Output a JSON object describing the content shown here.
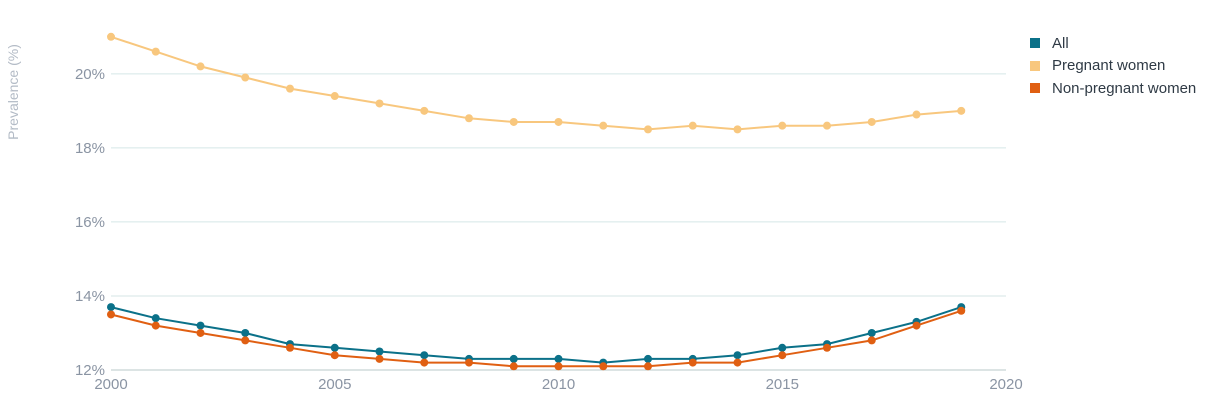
{
  "chart_data": {
    "type": "line",
    "title": "",
    "xlabel": "",
    "ylabel": "Prevalence (%)",
    "xlim": [
      2000,
      2020
    ],
    "ylim": [
      12,
      21.4
    ],
    "xticks": [
      2000,
      2005,
      2010,
      2015,
      2020
    ],
    "yticks": [
      12,
      14,
      16,
      18,
      20
    ],
    "ytick_labels": [
      "12%",
      "14%",
      "16%",
      "18%",
      "20%"
    ],
    "grid": true,
    "legend_position": "top-right",
    "x": [
      2000,
      2001,
      2002,
      2003,
      2004,
      2005,
      2006,
      2007,
      2008,
      2009,
      2010,
      2011,
      2012,
      2013,
      2014,
      2015,
      2016,
      2017,
      2018,
      2019
    ],
    "series": [
      {
        "name": "All",
        "color": "#0b7189",
        "values": [
          13.7,
          13.4,
          13.2,
          13.0,
          12.7,
          12.6,
          12.5,
          12.4,
          12.3,
          12.3,
          12.3,
          12.2,
          12.3,
          12.3,
          12.4,
          12.6,
          12.7,
          13.0,
          13.3,
          13.7
        ]
      },
      {
        "name": "Pregnant women",
        "color": "#f8c77e",
        "values": [
          21.0,
          20.6,
          20.2,
          19.9,
          19.6,
          19.4,
          19.2,
          19.0,
          18.8,
          18.7,
          18.7,
          18.6,
          18.5,
          18.6,
          18.5,
          18.6,
          18.6,
          18.7,
          18.9,
          19.0
        ]
      },
      {
        "name": "Non-pregnant women",
        "color": "#e05f12",
        "values": [
          13.5,
          13.2,
          13.0,
          12.8,
          12.6,
          12.4,
          12.3,
          12.2,
          12.2,
          12.1,
          12.1,
          12.1,
          12.1,
          12.2,
          12.2,
          12.4,
          12.6,
          12.8,
          13.2,
          13.6
        ]
      }
    ]
  }
}
